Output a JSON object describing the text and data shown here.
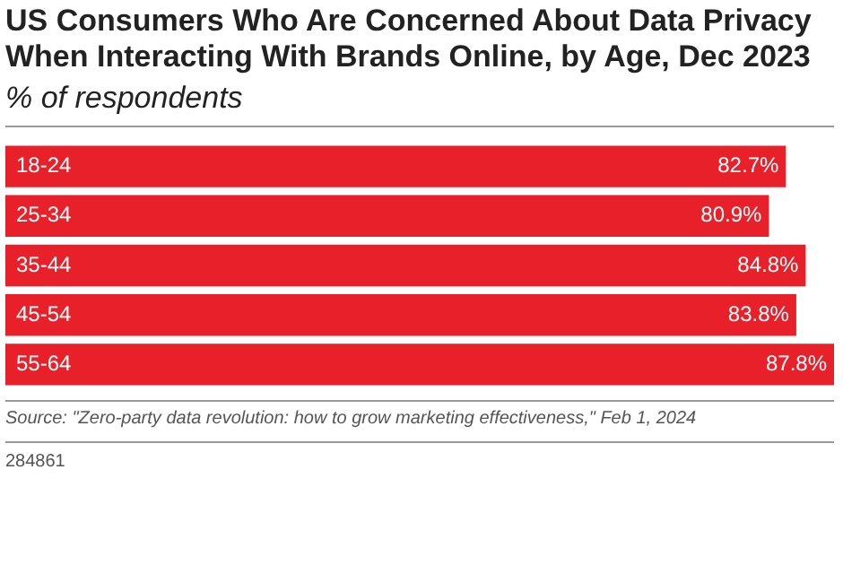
{
  "chart_data": {
    "type": "bar",
    "orientation": "horizontal",
    "title": "US Consumers Who Are Concerned About Data Privacy When Interacting With Brands Online, by Age, Dec 2023",
    "subtitle": "% of respondents",
    "categories": [
      "18-24",
      "25-34",
      "35-44",
      "45-54",
      "55-64"
    ],
    "values": [
      82.7,
      80.9,
      84.8,
      83.8,
      87.8
    ],
    "value_labels": [
      "82.7%",
      "80.9%",
      "84.8%",
      "83.8%",
      "87.8%"
    ],
    "color": "#e8202a",
    "annotations": [
      "Source: \"Zero-party data revolution: how to grow marketing effectiveness,\" Feb 1, 2024",
      "284861"
    ]
  }
}
